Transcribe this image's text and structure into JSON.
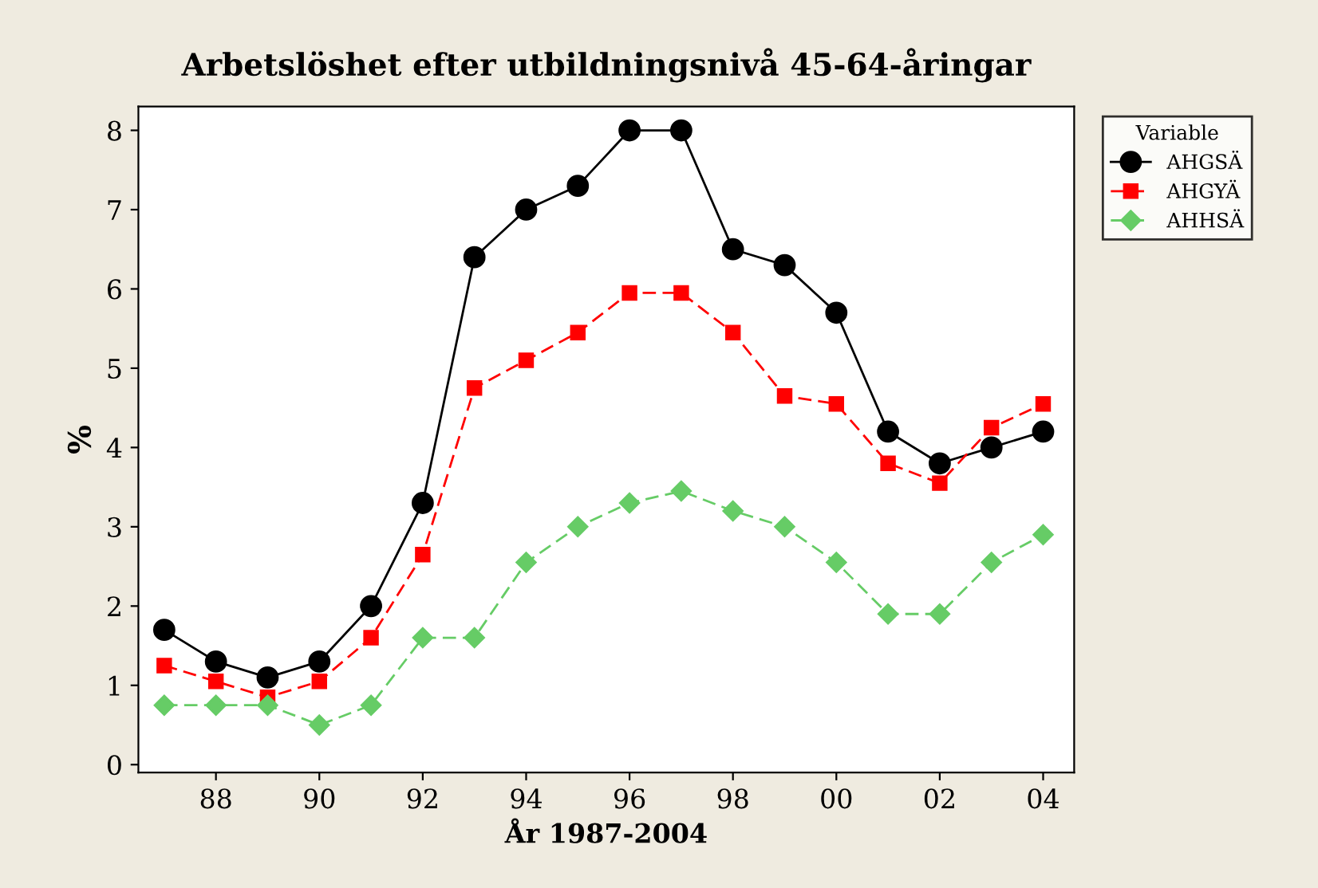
{
  "chart_data": {
    "type": "line",
    "title": "Arbetslöshet efter utbildningsnivå 45-64-åringar",
    "xlabel": "År 1987-2004",
    "ylabel": "%",
    "legend_title": "Variable",
    "legend": "right",
    "grid": false,
    "x": [
      1987,
      1988,
      1989,
      1990,
      1991,
      1992,
      1993,
      1994,
      1995,
      1996,
      1997,
      1998,
      1999,
      2000,
      2001,
      2002,
      2003,
      2004
    ],
    "series": [
      {
        "name": "AHGSÄ",
        "color": "#000000",
        "marker": "circle",
        "line_style": "solid",
        "values": [
          1.7,
          1.3,
          1.1,
          1.3,
          2.0,
          3.3,
          6.4,
          7.0,
          7.3,
          8.0,
          8.0,
          6.5,
          6.3,
          5.7,
          4.2,
          3.8,
          4.0,
          4.2
        ]
      },
      {
        "name": "AHGYÄ",
        "color": "#ff0000",
        "marker": "square",
        "line_style": "dashed",
        "values": [
          1.25,
          1.05,
          0.85,
          1.05,
          1.6,
          2.65,
          4.75,
          5.1,
          5.45,
          5.95,
          5.95,
          5.45,
          4.65,
          4.55,
          3.8,
          3.55,
          4.25,
          4.55
        ]
      },
      {
        "name": "AHHSÄ",
        "color": "#66cc66",
        "marker": "diamond",
        "line_style": "dashed",
        "values": [
          0.75,
          0.75,
          0.75,
          0.5,
          0.75,
          1.6,
          1.6,
          2.55,
          3.0,
          3.3,
          3.45,
          3.2,
          3.0,
          2.55,
          1.9,
          1.9,
          2.55,
          2.9
        ]
      }
    ],
    "xlim": [
      1986.5,
      2004.6
    ],
    "ylim": [
      -0.1,
      8.3
    ],
    "xticks": [
      {
        "value": 1988,
        "label": "88"
      },
      {
        "value": 1990,
        "label": "90"
      },
      {
        "value": 1992,
        "label": "92"
      },
      {
        "value": 1994,
        "label": "94"
      },
      {
        "value": 1996,
        "label": "96"
      },
      {
        "value": 1998,
        "label": "98"
      },
      {
        "value": 2000,
        "label": "00"
      },
      {
        "value": 2002,
        "label": "02"
      },
      {
        "value": 2004,
        "label": "04"
      }
    ],
    "yticks": [
      0,
      1,
      2,
      3,
      4,
      5,
      6,
      7,
      8
    ]
  }
}
